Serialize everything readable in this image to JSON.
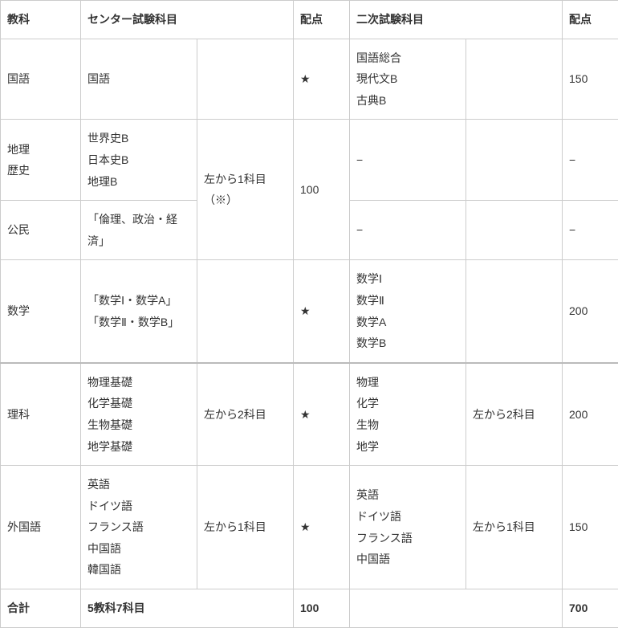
{
  "headers": {
    "subject": "教科",
    "center": "センター試験科目",
    "center_score": "配点",
    "second": "二次試験科目",
    "second_score": "配点"
  },
  "rows": {
    "kokugo": {
      "subject": "国語",
      "center_items": "国語",
      "center_note": "",
      "center_score": "★",
      "second_items": "国語総合\n現代文B\n古典B",
      "second_note": "",
      "second_score": "150"
    },
    "chireki": {
      "subject": "地理\n歴史",
      "center_items": "世界史B\n日本史B\n地理B",
      "center_note": "左から1科目（※）",
      "center_score": "100",
      "second_items": "−",
      "second_note": "",
      "second_score": "−"
    },
    "koumin": {
      "subject": "公民",
      "center_items": "「倫理、政治・経済」",
      "second_items": "−",
      "second_note": "",
      "second_score": "−"
    },
    "suugaku": {
      "subject": "数学",
      "center_items": "「数学Ⅰ・数学A」\n「数学Ⅱ・数学B」",
      "center_note": "",
      "center_score": "★",
      "second_items": "数学Ⅰ\n数学Ⅱ\n数学A\n数学B",
      "second_note": "",
      "second_score": "200"
    },
    "rika": {
      "subject": "理科",
      "center_items": "物理基礎\n化学基礎\n生物基礎\n地学基礎",
      "center_note": " 左から2科目",
      "center_score": "★",
      "second_items": "物理\n化学\n生物\n地学",
      "second_note": "左から2科目",
      "second_score": "200"
    },
    "gaikokugo": {
      "subject": "外国語",
      "center_items": "英語\nドイツ語\nフランス語\n中国語\n韓国語",
      "center_note": "左から1科目",
      "center_score": "★",
      "second_items": "英語\nドイツ語\nフランス語\n中国語",
      "second_note": "左から1科目",
      "second_score": "150"
    }
  },
  "totals": {
    "label": "合計",
    "center_summary": "5教科7科目",
    "center_total": "100",
    "second_summary": "",
    "second_total": "700"
  },
  "style": {
    "border_color": "#cccccc",
    "text_color": "#333333",
    "font_size_pt": 11
  }
}
